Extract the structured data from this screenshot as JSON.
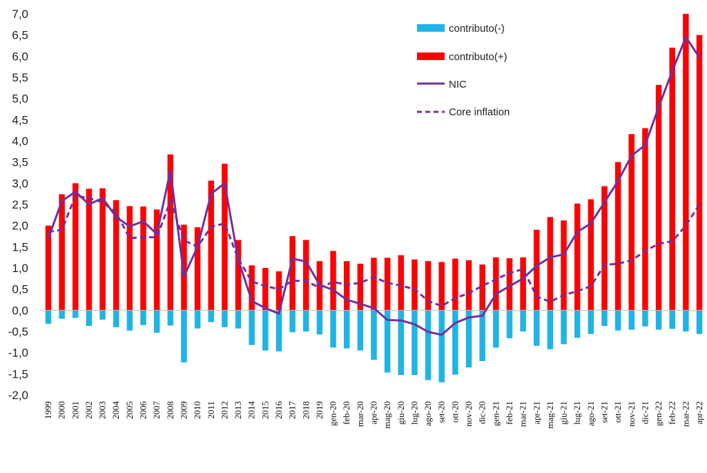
{
  "chart_data": {
    "type": "bar",
    "title": "",
    "xlabel": "",
    "ylabel": "",
    "ylim": [
      -2.0,
      7.0
    ],
    "yticks": [
      -2.0,
      -1.5,
      -1.0,
      -0.5,
      0.0,
      0.5,
      1.0,
      1.5,
      2.0,
      2.5,
      3.0,
      3.5,
      4.0,
      4.5,
      5.0,
      5.5,
      6.0,
      6.5,
      7.0
    ],
    "ytick_labels": [
      "-2,0",
      "-1,5",
      "-1,0",
      "-0,5",
      "0,0",
      "0,5",
      "1,0",
      "1,5",
      "2,0",
      "2,5",
      "3,0",
      "3,5",
      "4,0",
      "4,5",
      "5,0",
      "5,5",
      "6,0",
      "6,5",
      "7,0"
    ],
    "categories": [
      "1999",
      "2000",
      "2001",
      "2002",
      "2003",
      "2004",
      "2005",
      "2006",
      "2007",
      "2008",
      "2009",
      "2010",
      "2011",
      "2012",
      "2013",
      "2014",
      "2015",
      "2016",
      "2017",
      "2018",
      "2019",
      "gen-20",
      "feb-20",
      "mar-20",
      "apr-20",
      "mag-20",
      "giu-20",
      "lug-20",
      "ago-20",
      "set-20",
      "ott-20",
      "nov-20",
      "dic-20",
      "gen-21",
      "feb-21",
      "mar-21",
      "apr-21",
      "mag-21",
      "giu-21",
      "lug-21",
      "ago-21",
      "set-21",
      "ott-21",
      "nov-21",
      "dic-21",
      "gen-22",
      "feb-22",
      "mar-22",
      "apr-22"
    ],
    "series": [
      {
        "name": "contributo(-)",
        "kind": "bar",
        "color": "#1fb4e6",
        "values": [
          -0.32,
          -0.2,
          -0.18,
          -0.37,
          -0.22,
          -0.4,
          -0.48,
          -0.35,
          -0.53,
          -0.36,
          -1.23,
          -0.43,
          -0.28,
          -0.4,
          -0.43,
          -0.82,
          -0.95,
          -0.97,
          -0.52,
          -0.5,
          -0.57,
          -0.88,
          -0.9,
          -0.95,
          -1.17,
          -1.47,
          -1.53,
          -1.53,
          -1.65,
          -1.7,
          -1.52,
          -1.35,
          -1.2,
          -0.88,
          -0.66,
          -0.5,
          -0.84,
          -0.92,
          -0.8,
          -0.65,
          -0.56,
          -0.37,
          -0.48,
          -0.46,
          -0.38,
          -0.46,
          -0.44,
          -0.5,
          -0.56
        ]
      },
      {
        "name": "contributo(+)",
        "kind": "bar",
        "color": "#ff0000",
        "values": [
          2.0,
          2.74,
          3.0,
          2.87,
          2.88,
          2.6,
          2.46,
          2.45,
          2.38,
          3.68,
          2.02,
          1.96,
          3.06,
          3.46,
          1.66,
          1.06,
          1.0,
          0.92,
          1.75,
          1.66,
          1.16,
          1.4,
          1.16,
          1.1,
          1.24,
          1.24,
          1.3,
          1.2,
          1.16,
          1.14,
          1.22,
          1.18,
          1.08,
          1.25,
          1.23,
          1.25,
          1.9,
          2.2,
          2.12,
          2.52,
          2.62,
          2.93,
          3.5,
          4.16,
          4.3,
          5.32,
          6.2,
          7.0,
          6.5
        ]
      },
      {
        "name": "NIC",
        "kind": "line",
        "color": "#7030a0",
        "values": [
          1.7,
          2.58,
          2.8,
          2.5,
          2.65,
          2.2,
          1.98,
          2.1,
          1.8,
          3.3,
          0.8,
          1.5,
          2.75,
          3.0,
          1.2,
          0.22,
          0.05,
          -0.08,
          1.22,
          1.15,
          0.6,
          0.48,
          0.25,
          0.15,
          0.05,
          -0.23,
          -0.24,
          -0.33,
          -0.51,
          -0.58,
          -0.3,
          -0.17,
          -0.13,
          0.38,
          0.57,
          0.75,
          1.05,
          1.25,
          1.32,
          1.85,
          2.05,
          2.55,
          3.05,
          3.65,
          3.9,
          4.8,
          5.65,
          6.45,
          5.97
        ]
      },
      {
        "name": "Core inflation",
        "kind": "dashed-line",
        "color": "#7030a0",
        "values": [
          1.85,
          1.9,
          2.7,
          2.65,
          2.55,
          2.3,
          1.7,
          1.73,
          1.72,
          2.58,
          1.65,
          1.5,
          1.97,
          2.05,
          1.22,
          0.68,
          0.57,
          0.5,
          0.7,
          0.69,
          0.53,
          0.67,
          0.6,
          0.65,
          0.78,
          0.65,
          0.58,
          0.5,
          0.22,
          0.1,
          0.29,
          0.4,
          0.58,
          0.73,
          0.88,
          0.97,
          0.33,
          0.2,
          0.36,
          0.45,
          0.57,
          1.07,
          1.1,
          1.18,
          1.4,
          1.57,
          1.63,
          2.0,
          2.5
        ]
      }
    ],
    "legend": {
      "position": "top-right",
      "entries": [
        "contributo(-)",
        "contributo(+)",
        "NIC",
        "Core inflation"
      ]
    }
  }
}
